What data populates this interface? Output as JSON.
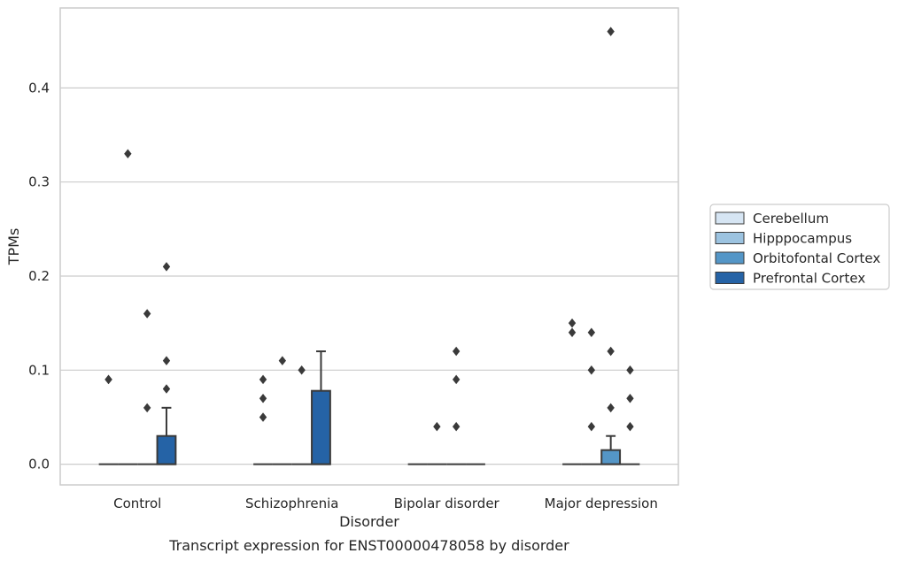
{
  "caption": "Transcript expression for ENST00000478058 by disorder",
  "colors": {
    "Cerebellum": "#d6e5f3",
    "Hipppocampus": "#9cc3e0",
    "Orbitofontal Cortex": "#5496c7",
    "Prefrontal Cortex": "#2563a6",
    "edge": "#3a3a3a",
    "grid": "#cccccc"
  },
  "chart_data": {
    "type": "box",
    "xlabel": "Disorder",
    "ylabel": "TPMs",
    "categories": [
      "Control",
      "Schizophrenia",
      "Bipolar disorder",
      "Major depression"
    ],
    "ylim": [
      -0.022,
      0.485
    ],
    "yticks": [
      0.0,
      0.1,
      0.2,
      0.3,
      0.4
    ],
    "ytick_labels": [
      "0.0",
      "0.1",
      "0.2",
      "0.3",
      "0.4"
    ],
    "grid": true,
    "legend_position": "center-right",
    "series": [
      {
        "name": "Cerebellum",
        "boxes": [
          {
            "q1": 0,
            "median": 0,
            "q3": 0,
            "whisker_low": 0,
            "whisker_high": 0,
            "outliers": [
              0.09,
              0.09
            ]
          },
          {
            "q1": 0,
            "median": 0,
            "q3": 0,
            "whisker_low": 0,
            "whisker_high": 0,
            "outliers": [
              0.05,
              0.07,
              0.09
            ]
          },
          {
            "q1": 0,
            "median": 0,
            "q3": 0,
            "whisker_low": 0,
            "whisker_high": 0,
            "outliers": []
          },
          {
            "q1": 0,
            "median": 0,
            "q3": 0,
            "whisker_low": 0,
            "whisker_high": 0,
            "outliers": [
              0.14,
              0.15
            ]
          }
        ]
      },
      {
        "name": "Hipppocampus",
        "boxes": [
          {
            "q1": 0,
            "median": 0,
            "q3": 0,
            "whisker_low": 0,
            "whisker_high": 0,
            "outliers": [
              0.33
            ]
          },
          {
            "q1": 0,
            "median": 0,
            "q3": 0,
            "whisker_low": 0,
            "whisker_high": 0,
            "outliers": [
              0.11
            ]
          },
          {
            "q1": 0,
            "median": 0,
            "q3": 0,
            "whisker_low": 0,
            "whisker_high": 0,
            "outliers": [
              0.04
            ]
          },
          {
            "q1": 0,
            "median": 0,
            "q3": 0,
            "whisker_low": 0,
            "whisker_high": 0,
            "outliers": [
              0.04,
              0.1,
              0.14
            ]
          }
        ]
      },
      {
        "name": "Orbitofontal Cortex",
        "boxes": [
          {
            "q1": 0,
            "median": 0,
            "q3": 0,
            "whisker_low": 0,
            "whisker_high": 0,
            "outliers": [
              0.06,
              0.16
            ]
          },
          {
            "q1": 0,
            "median": 0,
            "q3": 0,
            "whisker_low": 0,
            "whisker_high": 0,
            "outliers": [
              0.1
            ]
          },
          {
            "q1": 0,
            "median": 0,
            "q3": 0,
            "whisker_low": 0,
            "whisker_high": 0,
            "outliers": [
              0.04,
              0.09,
              0.12
            ]
          },
          {
            "q1": 0,
            "median": 0,
            "q3": 0.015,
            "whisker_low": 0,
            "whisker_high": 0.03,
            "outliers": [
              0.06,
              0.12,
              0.46
            ]
          }
        ]
      },
      {
        "name": "Prefrontal Cortex",
        "boxes": [
          {
            "q1": 0,
            "median": 0,
            "q3": 0.03,
            "whisker_low": 0,
            "whisker_high": 0.06,
            "outliers": [
              0.08,
              0.11,
              0.21
            ]
          },
          {
            "q1": 0,
            "median": 0,
            "q3": 0.078,
            "whisker_low": 0,
            "whisker_high": 0.12,
            "outliers": []
          },
          {
            "q1": 0,
            "median": 0,
            "q3": 0,
            "whisker_low": 0,
            "whisker_high": 0,
            "outliers": []
          },
          {
            "q1": 0,
            "median": 0,
            "q3": 0,
            "whisker_low": 0,
            "whisker_high": 0,
            "outliers": [
              0.04,
              0.07,
              0.1
            ]
          }
        ]
      }
    ]
  }
}
